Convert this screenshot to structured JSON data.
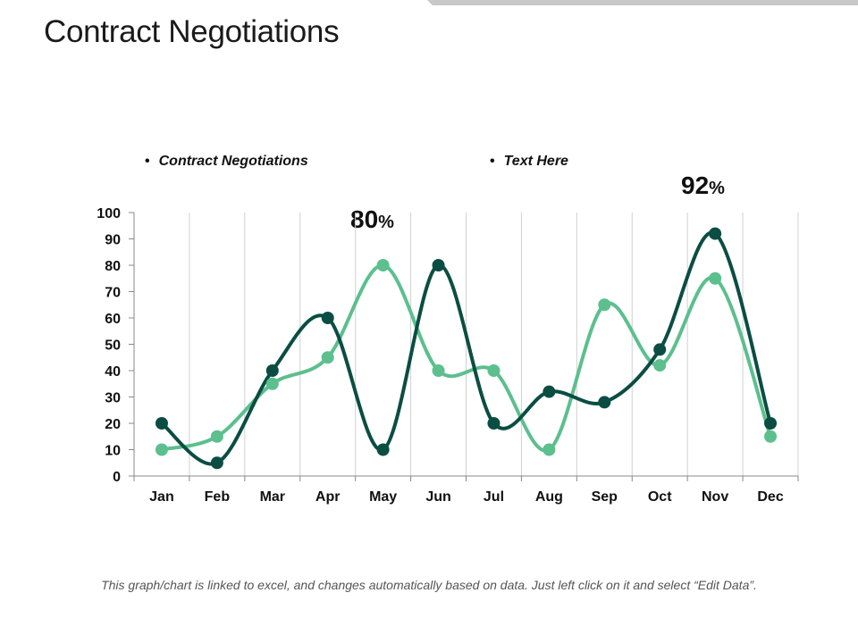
{
  "title": "Contract Negotiations",
  "legend": [
    {
      "bullet": "•",
      "label": "Contract Negotiations"
    },
    {
      "bullet": "•",
      "label": "Text Here"
    }
  ],
  "callouts": [
    {
      "value": "80",
      "unit": "%"
    },
    {
      "value": "92",
      "unit": "%"
    }
  ],
  "footnote": "This graph/chart is linked to excel, and changes automatically based on data. Just left click on it and select “Edit Data”.",
  "colors": {
    "series_light": "#5cbf8e",
    "series_dark": "#0b4d43",
    "grid": "#d0d0d0",
    "axis": "#888888"
  },
  "chart_data": {
    "type": "line",
    "title": "",
    "xlabel": "",
    "ylabel": "",
    "ylim": [
      0,
      100
    ],
    "yticks": [
      "0",
      "10",
      "20",
      "30",
      "40",
      "50",
      "60",
      "70",
      "80",
      "90",
      "100"
    ],
    "categories": [
      "Jan",
      "Feb",
      "Mar",
      "Apr",
      "May",
      "Jun",
      "Jul",
      "Aug",
      "Sep",
      "Oct",
      "Nov",
      "Dec"
    ],
    "series": [
      {
        "name": "Contract Negotiations",
        "color": "#5cbf8e",
        "values": [
          10,
          15,
          35,
          45,
          80,
          40,
          40,
          10,
          65,
          42,
          75,
          15
        ]
      },
      {
        "name": "Text Here",
        "color": "#0b4d43",
        "values": [
          20,
          5,
          40,
          60,
          10,
          80,
          20,
          32,
          28,
          48,
          92,
          20
        ]
      }
    ]
  }
}
